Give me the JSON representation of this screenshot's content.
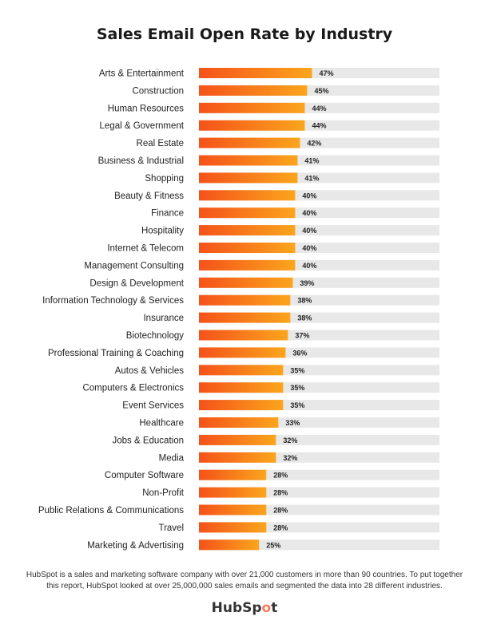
{
  "chart_data": {
    "type": "bar",
    "orientation": "horizontal",
    "title": "Sales Email Open Rate by Industry",
    "unit": "%",
    "xlim": [
      0,
      100
    ],
    "categories": [
      "Arts & Entertainment",
      "Construction",
      "Human Resources",
      "Legal & Government",
      "Real Estate",
      "Business & Industrial",
      "Shopping",
      "Beauty & Fitness",
      "Finance",
      "Hospitality",
      "Internet & Telecom",
      "Management Consulting",
      "Design & Development",
      "Information Technology & Services",
      "Insurance",
      "Biotechnology",
      "Professional Training & Coaching",
      "Autos & Vehicles",
      "Computers & Electronics",
      "Event Services",
      "Healthcare",
      "Jobs & Education",
      "Media",
      "Computer Software",
      "Non-Profit",
      "Public Relations & Communications",
      "Travel",
      "Marketing & Advertising"
    ],
    "values": [
      47,
      45,
      44,
      44,
      42,
      41,
      41,
      40,
      40,
      40,
      40,
      40,
      39,
      38,
      38,
      37,
      36,
      35,
      35,
      35,
      33,
      32,
      32,
      28,
      28,
      28,
      28,
      25
    ],
    "value_labels": [
      "47%",
      "45%",
      "44%",
      "44%",
      "42%",
      "41%",
      "41%",
      "40%",
      "40%",
      "40%",
      "40%",
      "40%",
      "39%",
      "38%",
      "38%",
      "37%",
      "36%",
      "35%",
      "35%",
      "35%",
      "33%",
      "32%",
      "32%",
      "28%",
      "28%",
      "28%",
      "28%",
      "25%"
    ],
    "colors": {
      "bar_start": "#f5521a",
      "bar_end": "#fba51c",
      "track": "#e8e8e8"
    }
  },
  "footnote": "HubSpot is a sales and marketing software company with over 21,000 customers in more than 90 countries. To put together this report, HubSpot looked at over 25,000,000 sales emails and segmented the data into 28 different industries.",
  "logo": {
    "text_left": "HubSp",
    "text_dot": "o",
    "text_right": "t"
  }
}
